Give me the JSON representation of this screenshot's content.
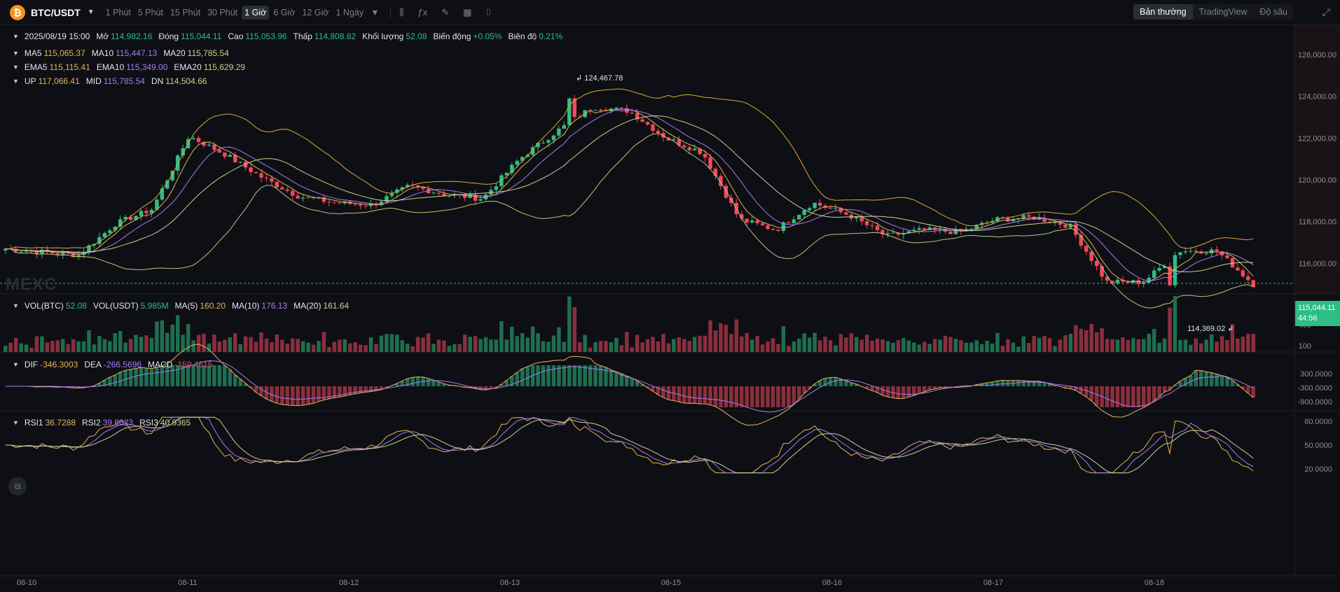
{
  "toolbar": {
    "coin_icon_glyph": "₿",
    "pair": "BTC/USDT",
    "intervals": [
      "1 Phút",
      "5 Phút",
      "15 Phút",
      "30 Phút",
      "1 Giờ",
      "6 Giờ",
      "12 Giờ",
      "1 Ngày"
    ],
    "active_interval": "1 Giờ",
    "view_modes": [
      "Bản thường",
      "TradingView",
      "Độ sâu"
    ],
    "active_view": "Bản thường",
    "tool_icons": [
      "candle-type-icon",
      "indicator-icon",
      "draw-icon",
      "layout-icon",
      "camera-icon",
      "fullscreen-icon"
    ]
  },
  "ohlc": {
    "date": "2025/08/19 15:00",
    "open_label": "Mở",
    "open": "114,982.16",
    "close_label": "Đóng",
    "close": "115,044.11",
    "high_label": "Cao",
    "high": "115,053.96",
    "low_label": "Thấp",
    "low": "114,808.82",
    "volume_label": "Khối lượng",
    "volume": "52.08",
    "change_label": "Biến động",
    "change": "+0.05%",
    "amplitude_label": "Biên độ",
    "amplitude": "0.21%"
  },
  "indicators": {
    "ma": [
      {
        "label": "MA5",
        "value": "115,065.37"
      },
      {
        "label": "MA10",
        "value": "115,447.13"
      },
      {
        "label": "MA20",
        "value": "115,785.54"
      }
    ],
    "ema": [
      {
        "label": "EMA5",
        "value": "115,115.41"
      },
      {
        "label": "EMA10",
        "value": "115,349.00"
      },
      {
        "label": "EMA20",
        "value": "115,629.29"
      }
    ],
    "boll": [
      {
        "label": "UP",
        "value": "117,066.41"
      },
      {
        "label": "MID",
        "value": "115,785.54"
      },
      {
        "label": "DN",
        "value": "114,504.66"
      }
    ],
    "vol": [
      {
        "label": "VOL(BTC)",
        "value": "52.08"
      },
      {
        "label": "VOL(USDT)",
        "value": "5.985M"
      },
      {
        "label": "MA(5)",
        "value": "160.20"
      },
      {
        "label": "MA(10)",
        "value": "176.13"
      },
      {
        "label": "MA(20)",
        "value": "161.64"
      }
    ],
    "macd": [
      {
        "label": "DIF",
        "value": "-346.3003"
      },
      {
        "label": "DEA",
        "value": "-266.5696"
      },
      {
        "label": "MACD",
        "value": "-159.4615"
      }
    ],
    "rsi": [
      {
        "label": "RSI1",
        "value": "36.7288"
      },
      {
        "label": "RSI2",
        "value": "39.6623"
      },
      {
        "label": "RSI3",
        "value": "40.9365"
      }
    ]
  },
  "price_axis": [
    "126,000.00",
    "124,000.00",
    "122,000.00",
    "120,000.00",
    "118,000.00",
    "116,000.00",
    "114,000.00"
  ],
  "volume_axis": [
    "700",
    "400",
    "100"
  ],
  "macd_axis": [
    "300.0000",
    "-300.0000",
    "-900.0000"
  ],
  "rsi_axis": [
    "80.0000",
    "50.0000",
    "20.0000"
  ],
  "date_axis": [
    "08-10",
    "08-11",
    "08-12",
    "08-13",
    "08-15",
    "08-16",
    "08-17",
    "08-18"
  ],
  "current_price": "115,044.11",
  "countdown": "44:56",
  "high_marker": "124,467.78",
  "low_marker": "114,369.02",
  "watermark": "MEXC",
  "colors": {
    "up": "#2ebd85",
    "down": "#f6465d",
    "ma5": "#e5b35a",
    "ma10": "#a77cf0",
    "ma20": "#c6d58a",
    "background": "#0e0f14"
  },
  "chart_data": {
    "type": "candlestick",
    "interval": "1h",
    "y_range": [
      113500,
      126600
    ],
    "x_ticks": [
      "08-10",
      "08-11",
      "08-12",
      "08-13",
      "08-15",
      "08-16",
      "08-17",
      "08-18"
    ],
    "close_path": [
      [
        "08-10",
        116700
      ],
      [
        "08-10",
        116550
      ],
      [
        "08-10",
        116400
      ],
      [
        "08-11",
        117900
      ],
      [
        "08-11",
        118600
      ],
      [
        "08-11",
        122100
      ],
      [
        "08-11",
        121200
      ],
      [
        "08-11",
        120100
      ],
      [
        "08-11",
        119200
      ],
      [
        "08-12",
        118900
      ],
      [
        "08-12",
        118800
      ],
      [
        "08-12",
        119700
      ],
      [
        "08-12",
        119300
      ],
      [
        "08-12",
        119100
      ],
      [
        "08-13",
        121000
      ],
      [
        "08-13",
        122300
      ],
      [
        "08-13",
        123500
      ],
      [
        "08-13",
        123300
      ],
      [
        "08-13",
        122000
      ],
      [
        "08-13",
        121300
      ],
      [
        "08-15",
        118100
      ],
      [
        "08-15",
        117600
      ],
      [
        "08-15",
        118900
      ],
      [
        "08-15",
        118300
      ],
      [
        "08-16",
        117300
      ],
      [
        "08-16",
        117600
      ],
      [
        "08-16",
        117500
      ],
      [
        "08-17",
        118100
      ],
      [
        "08-17",
        118200
      ],
      [
        "08-17",
        117800
      ],
      [
        "08-18",
        115100
      ],
      [
        "08-18",
        115100
      ],
      [
        "08-18",
        116600
      ],
      [
        "08-18",
        116600
      ],
      [
        "08-18",
        115000
      ]
    ],
    "high": 124467.78,
    "low": 114369.02,
    "last": 115044.11,
    "bollinger": {
      "UP": 117066.41,
      "MID": 115785.54,
      "DN": 114504.66
    }
  }
}
